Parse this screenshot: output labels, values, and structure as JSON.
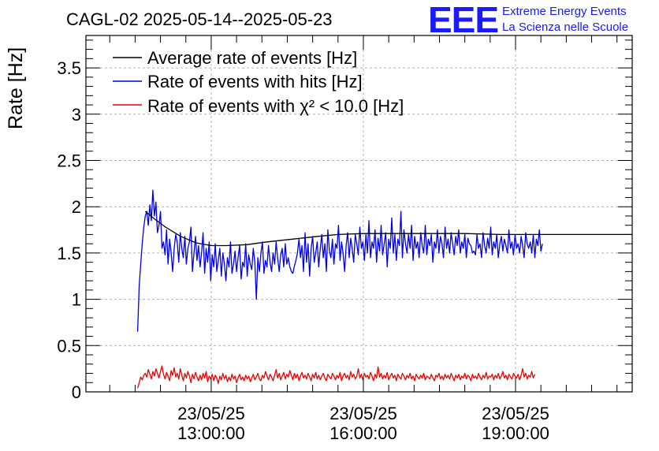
{
  "header": {
    "title": "CAGL-02 2025-05-14--2025-05-23",
    "logo_mark": "EEE",
    "logo_line1": "Extreme Energy Events",
    "logo_line2": "La Scienza nelle Scuole",
    "logo_color": "#1a1aff"
  },
  "chart_data": {
    "type": "line",
    "title": "CAGL-02 2025-05-14--2025-05-23",
    "xlabel": "",
    "ylabel": "Rate [Hz]",
    "x_unit": "hours (time of day, 23/05/25)",
    "xlim": [
      10.53,
      21.3
    ],
    "ylim": [
      0,
      3.85
    ],
    "grid": true,
    "legend_position": "top-left",
    "y_ticks": [
      "0",
      "0.5",
      "1",
      "1.5",
      "2",
      "2.5",
      "3",
      "3.5"
    ],
    "x_ticks": [
      {
        "x": 13,
        "date": "23/05/25",
        "time": "13:00:00"
      },
      {
        "x": 16,
        "date": "23/05/25",
        "time": "16:00:00"
      },
      {
        "x": 19,
        "date": "23/05/25",
        "time": "19:00:00"
      }
    ],
    "series": [
      {
        "name": "Average rate of events [Hz]",
        "color": "#000000",
        "x": [
          11.7,
          11.9,
          12.1,
          12.4,
          12.7,
          13.0,
          13.3,
          13.7,
          14.1,
          14.6,
          15.1,
          15.5,
          16.0,
          16.6,
          17.3,
          18.0,
          18.7,
          19.5,
          20.3,
          21.3
        ],
        "y": [
          1.95,
          1.86,
          1.78,
          1.68,
          1.61,
          1.58,
          1.58,
          1.59,
          1.62,
          1.65,
          1.68,
          1.7,
          1.71,
          1.71,
          1.71,
          1.71,
          1.7,
          1.7,
          1.7,
          1.7
        ]
      },
      {
        "name": "Rate of events with hits [Hz]",
        "color": "#0000ee",
        "x_start": 11.55,
        "x_step": 0.03,
        "y": [
          0.65,
          1.15,
          1.38,
          1.6,
          1.78,
          1.9,
          1.95,
          1.8,
          2.02,
          1.85,
          2.18,
          1.9,
          2.05,
          1.72,
          1.8,
          1.95,
          1.55,
          1.62,
          1.48,
          1.75,
          1.38,
          1.65,
          1.5,
          1.3,
          1.55,
          1.7,
          1.62,
          1.4,
          1.72,
          1.55,
          1.45,
          1.68,
          1.38,
          1.55,
          1.62,
          1.78,
          1.3,
          1.5,
          1.68,
          1.42,
          1.58,
          1.35,
          1.5,
          1.72,
          1.28,
          1.55,
          1.4,
          1.62,
          1.2,
          1.48,
          1.35,
          1.6,
          1.3,
          1.42,
          1.55,
          1.25,
          1.5,
          1.38,
          1.2,
          1.45,
          1.35,
          1.62,
          1.28,
          1.38,
          1.52,
          1.3,
          1.45,
          1.58,
          1.22,
          1.4,
          1.35,
          1.6,
          1.25,
          1.48,
          1.38,
          1.32,
          1.55,
          1.4,
          1.0,
          1.45,
          1.3,
          1.5,
          1.62,
          1.28,
          1.42,
          1.35,
          1.58,
          1.4,
          1.3,
          1.5,
          1.38,
          1.62,
          1.45,
          1.3,
          1.48,
          1.55,
          1.35,
          1.6,
          1.38,
          1.45,
          1.35,
          1.3,
          1.28,
          1.36,
          1.42,
          1.5,
          1.65,
          1.45,
          1.58,
          1.3,
          1.72,
          1.4,
          1.6,
          1.25,
          1.55,
          1.68,
          1.4,
          1.5,
          1.62,
          1.35,
          1.55,
          1.7,
          1.45,
          1.6,
          1.3,
          1.75,
          1.52,
          1.45,
          1.65,
          1.38,
          1.6,
          1.55,
          1.8,
          1.42,
          1.62,
          1.5,
          1.3,
          1.58,
          1.72,
          1.45,
          1.66,
          1.55,
          1.4,
          1.7,
          1.6,
          1.48,
          1.78,
          1.55,
          1.62,
          1.42,
          1.7,
          1.5,
          1.85,
          1.45,
          1.62,
          1.55,
          1.75,
          1.4,
          1.66,
          1.52,
          1.8,
          1.48,
          1.6,
          1.72,
          1.35,
          1.65,
          1.55,
          1.88,
          1.5,
          1.7,
          1.42,
          1.65,
          1.58,
          1.95,
          1.45,
          1.75,
          1.6,
          1.5,
          1.7,
          1.55,
          1.8,
          1.42,
          1.68,
          1.55,
          1.62,
          1.45,
          1.72,
          1.58,
          1.5,
          1.8,
          1.48,
          1.65,
          1.58,
          1.7,
          1.4,
          1.62,
          1.55,
          1.75,
          1.5,
          1.68,
          1.6,
          1.45,
          1.78,
          1.55,
          1.65,
          1.5,
          1.72,
          1.6,
          1.48,
          1.68,
          1.58,
          1.75,
          1.5,
          1.62,
          1.55,
          1.7,
          1.45,
          1.66,
          1.6,
          1.58,
          1.5,
          1.52,
          1.48,
          1.7,
          1.55,
          1.6,
          1.45,
          1.72,
          1.58,
          1.5,
          1.66,
          1.55,
          1.78,
          1.48,
          1.62,
          1.55,
          1.7,
          1.45,
          1.6,
          1.68,
          1.52,
          1.65,
          1.58,
          1.5,
          1.75,
          1.55,
          1.62,
          1.48,
          1.7,
          1.55,
          1.6,
          1.5,
          1.68,
          1.58,
          1.45,
          1.72,
          1.6,
          1.55,
          1.62,
          1.5,
          1.7,
          1.45,
          1.65,
          1.58,
          1.75,
          1.52,
          1.6
        ]
      },
      {
        "name": "Rate of events with χ² < 10.0 [Hz]",
        "color": "#ee0000",
        "x_start": 11.55,
        "x_step": 0.03,
        "y": [
          0.04,
          0.1,
          0.16,
          0.13,
          0.18,
          0.2,
          0.16,
          0.24,
          0.19,
          0.14,
          0.22,
          0.17,
          0.25,
          0.2,
          0.15,
          0.22,
          0.28,
          0.19,
          0.14,
          0.21,
          0.17,
          0.12,
          0.23,
          0.18,
          0.26,
          0.16,
          0.2,
          0.14,
          0.25,
          0.18,
          0.12,
          0.2,
          0.15,
          0.22,
          0.17,
          0.1,
          0.19,
          0.14,
          0.21,
          0.16,
          0.12,
          0.18,
          0.13,
          0.2,
          0.15,
          0.22,
          0.11,
          0.17,
          0.14,
          0.19,
          0.12,
          0.18,
          0.15,
          0.09,
          0.17,
          0.13,
          0.2,
          0.14,
          0.18,
          0.11,
          0.16,
          0.12,
          0.19,
          0.14,
          0.17,
          0.1,
          0.15,
          0.19,
          0.13,
          0.16,
          0.12,
          0.18,
          0.14,
          0.17,
          0.11,
          0.15,
          0.19,
          0.13,
          0.16,
          0.2,
          0.14,
          0.12,
          0.18,
          0.15,
          0.22,
          0.17,
          0.13,
          0.19,
          0.16,
          0.12,
          0.18,
          0.24,
          0.15,
          0.2,
          0.13,
          0.17,
          0.21,
          0.14,
          0.19,
          0.16,
          0.23,
          0.18,
          0.13,
          0.2,
          0.15,
          0.19,
          0.12,
          0.17,
          0.21,
          0.15,
          0.18,
          0.14,
          0.2,
          0.16,
          0.12,
          0.19,
          0.15,
          0.21,
          0.14,
          0.18,
          0.13,
          0.17,
          0.2,
          0.15,
          0.12,
          0.19,
          0.16,
          0.14,
          0.2,
          0.17,
          0.13,
          0.18,
          0.15,
          0.21,
          0.12,
          0.17,
          0.2,
          0.15,
          0.18,
          0.13,
          0.22,
          0.16,
          0.19,
          0.14,
          0.17,
          0.25,
          0.15,
          0.19,
          0.13,
          0.2,
          0.16,
          0.18,
          0.14,
          0.21,
          0.17,
          0.12,
          0.19,
          0.15,
          0.27,
          0.16,
          0.2,
          0.14,
          0.18,
          0.15,
          0.21,
          0.13,
          0.17,
          0.2,
          0.15,
          0.18,
          0.12,
          0.19,
          0.16,
          0.14,
          0.2,
          0.17,
          0.13,
          0.18,
          0.15,
          0.2,
          0.14,
          0.17,
          0.12,
          0.19,
          0.16,
          0.14,
          0.18,
          0.15,
          0.2,
          0.13,
          0.17,
          0.16,
          0.14,
          0.19,
          0.15,
          0.12,
          0.18,
          0.16,
          0.2,
          0.14,
          0.17,
          0.13,
          0.19,
          0.15,
          0.18,
          0.14,
          0.2,
          0.16,
          0.12,
          0.18,
          0.15,
          0.19,
          0.13,
          0.17,
          0.15,
          0.2,
          0.14,
          0.18,
          0.16,
          0.12,
          0.19,
          0.15,
          0.17,
          0.14,
          0.2,
          0.16,
          0.13,
          0.18,
          0.15,
          0.21,
          0.14,
          0.17,
          0.16,
          0.19,
          0.13,
          0.18,
          0.15,
          0.2,
          0.14,
          0.17,
          0.22,
          0.15,
          0.18,
          0.13,
          0.19,
          0.16,
          0.14,
          0.2,
          0.17,
          0.15,
          0.19,
          0.13,
          0.18,
          0.25,
          0.16,
          0.2,
          0.14,
          0.18,
          0.16,
          0.22,
          0.15,
          0.19
        ]
      }
    ]
  }
}
